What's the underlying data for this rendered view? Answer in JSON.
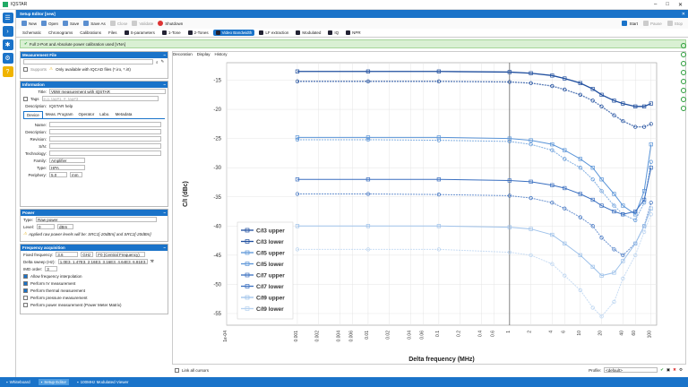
{
  "app_title": "IQSTAR",
  "tab_title": "Setup Editor [new]",
  "toolbar": {
    "new": "New",
    "open": "Open",
    "save": "Save",
    "save_as": "Save As",
    "close": "Close",
    "validate": "Validate",
    "shutdown": "Shutdown",
    "start": "Start",
    "pause": "Pause",
    "stop": "Stop"
  },
  "modules": [
    "Schematic",
    "Chronograms",
    "Calibrations",
    "Files",
    "S-parameters",
    "1-Tone",
    "2-Tones",
    "Video Bandwidth",
    "LF extraction",
    "Modulated",
    "IQ",
    "NPR"
  ],
  "active_module": "Video Bandwidth",
  "notice": "Full 2-Port and Absolute power calibration used [VNA]",
  "measurement_file": {
    "header": "Measurement File",
    "supports": "Supports",
    "only_files": "Only available with IQCAD files (*.iro, *.irt)"
  },
  "information": {
    "header": "Information",
    "title_label": "Title:",
    "title_value": "VBW measurement with IQSTAR",
    "tags_label": "Tags",
    "tags_value": "e.g. tag#1, #, tag#3",
    "description_label": "Description:",
    "description_value": "IQSTAR help",
    "subtabs": [
      "Device",
      "Meas. Program",
      "Operator",
      "Labo.",
      "Metadata"
    ],
    "fields": [
      "Name:",
      "Description:",
      "Revision:",
      "S/N:",
      "Technology:"
    ],
    "family_label": "Family:",
    "family_value": "Amplifier",
    "type_label": "Type:",
    "type_value": "HPA",
    "periphery_label": "Periphery:",
    "periphery_value": "5.0",
    "periphery_unit": "mm"
  },
  "power": {
    "header": "Power",
    "type_label": "Type:",
    "type_value": "Raw power",
    "level_label": "Level:",
    "level_value": "0",
    "level_unit": "dBm",
    "warning": "Applied raw power levels will be: SRC1[-20dBm] and SRC2[-20dBm]"
  },
  "frequency": {
    "header": "Frequency acquisition",
    "fixed_label": "Fixed frequency:",
    "fixed_value": "3.6",
    "fixed_unit": "GHz",
    "fixed_mode": "F0 (Central Frequency)",
    "delta_label": "Delta sweep (Hz):",
    "delta_value": "1.0E3, 1.47E3, 2.16E3, 3.16E3, 4.64E3, 6.81E3, 1.0E4",
    "imd_label": "IMD order:",
    "imd_value": "3",
    "checks": [
      {
        "label": "Allow frequency interpolation",
        "on": true
      },
      {
        "label": "Perform IV measurement",
        "on": true
      },
      {
        "label": "Perform thermal measurement",
        "on": true
      },
      {
        "label": "Perform pressure measurement",
        "on": false
      },
      {
        "label": "Perform power measurement (Power Meter Matrix)",
        "on": false
      }
    ]
  },
  "chart_tabs": [
    "Decoration",
    "Display",
    "History"
  ],
  "link_cursors": "Link all cursors",
  "profile_label": "Profile:",
  "profile_value": "<default>",
  "status_items": [
    "Whiteboard",
    "Setup Editor",
    "100MHz Modulated Viewer"
  ],
  "colors": {
    "accent": "#1a73c9"
  },
  "chart_data": {
    "type": "line",
    "xlabel": "Delta frequency (MHz)",
    "ylabel": "C/I (dBc)",
    "x_scale": "log",
    "xlim": [
      0.0001,
      120
    ],
    "ylim": [
      -57,
      -12
    ],
    "x_ticks": [
      "1e-04",
      "0.001",
      "0.002",
      "0.004",
      "0.006",
      "0.01",
      "0.02",
      "0.04",
      "0.06",
      "0.1",
      "0.2",
      "0.4",
      "0.6",
      "1",
      "2",
      "4",
      "6",
      "10",
      "20",
      "40",
      "60",
      "100"
    ],
    "y_ticks": [
      "-15",
      "-20",
      "-25",
      "-30",
      "-35",
      "-40",
      "-45",
      "-50",
      "-55"
    ],
    "x": [
      0.001,
      0.01,
      0.1,
      1,
      2,
      4,
      6,
      10,
      15,
      20,
      30,
      40,
      60,
      80,
      100
    ],
    "series": [
      {
        "name": "C/I3 upper",
        "color": "#1f4e9e",
        "values": [
          -13.5,
          -13.5,
          -13.5,
          -13.6,
          -13.8,
          -14.2,
          -14.7,
          -15.5,
          -16.5,
          -17.5,
          -18.5,
          -19,
          -19.5,
          -19.5,
          -19
        ]
      },
      {
        "name": "C/I3 lower",
        "color": "#1f4e9e",
        "values": [
          -15.2,
          -15.2,
          -15.2,
          -15.3,
          -15.5,
          -16,
          -16.6,
          -17.5,
          -18.5,
          -19.5,
          -21,
          -22,
          -23,
          -23,
          -22.5
        ]
      },
      {
        "name": "C/I5 upper",
        "color": "#5b95d8",
        "values": [
          -24.8,
          -24.8,
          -24.8,
          -25,
          -25.3,
          -26,
          -27,
          -28.5,
          -30,
          -32,
          -34.5,
          -36.5,
          -38,
          -34,
          -26
        ]
      },
      {
        "name": "C/I5 lower",
        "color": "#5b95d8",
        "values": [
          -25.2,
          -25.2,
          -25.3,
          -25.5,
          -26,
          -27,
          -28.5,
          -30,
          -32,
          -34,
          -36.5,
          -38,
          -39,
          -36,
          -29
        ]
      },
      {
        "name": "C/I7 upper",
        "color": "#3a6fc0",
        "values": [
          -32,
          -32,
          -32,
          -32.2,
          -32.4,
          -33,
          -33.5,
          -34.5,
          -35.5,
          -36.5,
          -37.5,
          -38,
          -37.5,
          -35.5,
          -30
        ]
      },
      {
        "name": "C/I7 lower",
        "color": "#3a6fc0",
        "values": [
          -34.5,
          -34.5,
          -34.6,
          -34.8,
          -35.2,
          -36,
          -37,
          -38.5,
          -40,
          -42,
          -44,
          -45,
          -43,
          -40,
          -36
        ]
      },
      {
        "name": "C/I9 upper",
        "color": "#9fc2ea",
        "values": [
          -40,
          -40,
          -40,
          -40.2,
          -40.5,
          -41.5,
          -43,
          -45,
          -47,
          -48.5,
          -48,
          -46,
          -43,
          -40,
          -37
        ]
      },
      {
        "name": "C/I9 lower",
        "color": "#b7d2f0",
        "values": [
          -44,
          -44,
          -44,
          -44.5,
          -45,
          -46.5,
          -48.5,
          -51,
          -54,
          -55.5,
          -53,
          -49,
          -45,
          -41,
          -38
        ]
      }
    ]
  }
}
